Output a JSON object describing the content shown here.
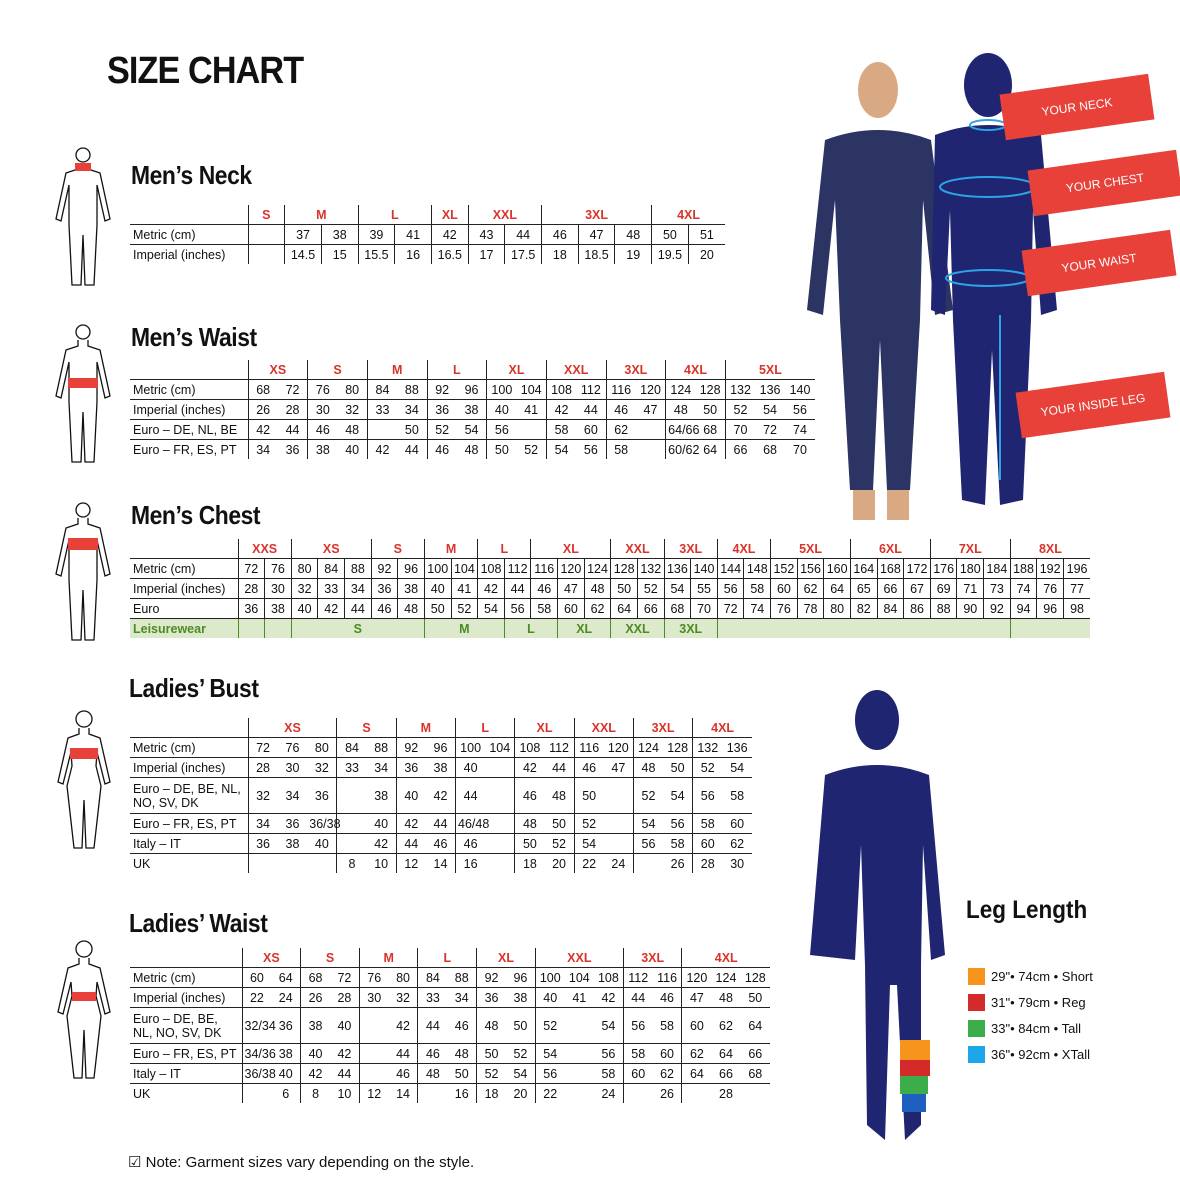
{
  "title": "SIZE CHART",
  "colors": {
    "size_label": "#d9342b",
    "navy": "#1f2570",
    "callout": "#e8413a",
    "leisure_text": "#4e8a23",
    "leisure_bg": "#dceacb"
  },
  "callouts": [
    "YOUR NECK",
    "YOUR CHEST",
    "YOUR WAIST",
    "YOUR INSIDE LEG"
  ],
  "tables": [
    {
      "id": "mens-neck",
      "heading": "Men’s Neck",
      "sizes": [
        {
          "label": "S",
          "span": 1
        },
        {
          "label": "M",
          "span": 2
        },
        {
          "label": "L",
          "span": 2
        },
        {
          "label": "XL",
          "span": 1
        },
        {
          "label": "XXL",
          "span": 2
        },
        {
          "label": "3XL",
          "span": 3
        },
        {
          "label": "4XL",
          "span": 2
        }
      ],
      "rows": [
        {
          "label": "Metric (cm)",
          "cells": [
            "",
            "37",
            "38",
            "39",
            "41",
            "42",
            "43",
            "44",
            "46",
            "47",
            "48",
            "50",
            "51"
          ]
        },
        {
          "label": "Imperial (inches)",
          "cells": [
            "",
            "14.5",
            "15",
            "15.5",
            "16",
            "16.5",
            "17",
            "17.5",
            "18",
            "18.5",
            "19",
            "19.5",
            "20"
          ]
        }
      ]
    },
    {
      "id": "mens-waist",
      "heading": "Men’s Waist",
      "sizes": [
        {
          "label": "XS",
          "span": 2
        },
        {
          "label": "S",
          "span": 2
        },
        {
          "label": "M",
          "span": 2
        },
        {
          "label": "L",
          "span": 2
        },
        {
          "label": "XL",
          "span": 2
        },
        {
          "label": "XXL",
          "span": 2
        },
        {
          "label": "3XL",
          "span": 2
        },
        {
          "label": "4XL",
          "span": 2
        },
        {
          "label": "5XL",
          "span": 3
        }
      ],
      "rows": [
        {
          "label": "Metric (cm)",
          "cells": [
            "68",
            "72",
            "76",
            "80",
            "84",
            "88",
            "92",
            "96",
            "100",
            "104",
            "108",
            "112",
            "116",
            "120",
            "124",
            "128",
            "132",
            "136",
            "140"
          ]
        },
        {
          "label": "Imperial (inches)",
          "cells": [
            "26",
            "28",
            "30",
            "32",
            "33",
            "34",
            "36",
            "38",
            "40",
            "41",
            "42",
            "44",
            "46",
            "47",
            "48",
            "50",
            "52",
            "54",
            "56"
          ]
        },
        {
          "label": "Euro – DE, NL, BE",
          "cells": [
            "42",
            "44",
            "46",
            "48",
            "",
            "50",
            "52",
            "54",
            "56",
            "",
            "58",
            "60",
            "62",
            "",
            "64/66",
            "68",
            "70",
            "72",
            "74"
          ]
        },
        {
          "label": "Euro – FR, ES, PT",
          "cells": [
            "34",
            "36",
            "38",
            "40",
            "42",
            "44",
            "46",
            "48",
            "50",
            "52",
            "54",
            "56",
            "58",
            "",
            "60/62",
            "64",
            "66",
            "68",
            "70"
          ]
        }
      ]
    },
    {
      "id": "mens-chest",
      "heading": "Men’s Chest",
      "sizes": [
        {
          "label": "XXS",
          "span": 2
        },
        {
          "label": "XS",
          "span": 3
        },
        {
          "label": "S",
          "span": 2
        },
        {
          "label": "M",
          "span": 2
        },
        {
          "label": "L",
          "span": 2
        },
        {
          "label": "XL",
          "span": 3
        },
        {
          "label": "XXL",
          "span": 2
        },
        {
          "label": "3XL",
          "span": 2
        },
        {
          "label": "4XL",
          "span": 2
        },
        {
          "label": "5XL",
          "span": 3
        },
        {
          "label": "6XL",
          "span": 3
        },
        {
          "label": "7XL",
          "span": 3
        },
        {
          "label": "8XL",
          "span": 3
        }
      ],
      "rows": [
        {
          "label": "Metric (cm)",
          "cells": [
            "72",
            "76",
            "80",
            "84",
            "88",
            "92",
            "96",
            "100",
            "104",
            "108",
            "112",
            "116",
            "120",
            "124",
            "128",
            "132",
            "136",
            "140",
            "144",
            "148",
            "152",
            "156",
            "160",
            "164",
            "168",
            "172",
            "176",
            "180",
            "184",
            "188",
            "192",
            "196"
          ]
        },
        {
          "label": "Imperial (inches)",
          "cells": [
            "28",
            "30",
            "32",
            "33",
            "34",
            "36",
            "38",
            "40",
            "41",
            "42",
            "44",
            "46",
            "47",
            "48",
            "50",
            "52",
            "54",
            "55",
            "56",
            "58",
            "60",
            "62",
            "64",
            "65",
            "66",
            "67",
            "69",
            "71",
            "73",
            "74",
            "76",
            "77"
          ]
        },
        {
          "label": "Euro",
          "cells": [
            "36",
            "38",
            "40",
            "42",
            "44",
            "46",
            "48",
            "50",
            "52",
            "54",
            "56",
            "58",
            "60",
            "62",
            "64",
            "66",
            "68",
            "70",
            "72",
            "74",
            "76",
            "78",
            "80",
            "82",
            "84",
            "86",
            "88",
            "90",
            "92",
            "94",
            "96",
            "98"
          ]
        }
      ],
      "leisurewear": {
        "label": "Leisurewear",
        "cells": [
          {
            "text": "",
            "span": 1
          },
          {
            "text": "",
            "span": 1
          },
          {
            "text": "S",
            "span": 5
          },
          {
            "text": "M",
            "span": 3
          },
          {
            "text": "L",
            "span": 2
          },
          {
            "text": "XL",
            "span": 2
          },
          {
            "text": "XXL",
            "span": 2
          },
          {
            "text": "3XL",
            "span": 2
          },
          {
            "text": "",
            "span": 11
          },
          {
            "text": "",
            "span": 3
          }
        ]
      }
    },
    {
      "id": "ladies-bust",
      "heading": "Ladies’ Bust",
      "sizes": [
        {
          "label": "XS",
          "span": 3
        },
        {
          "label": "S",
          "span": 2
        },
        {
          "label": "M",
          "span": 2
        },
        {
          "label": "L",
          "span": 2
        },
        {
          "label": "XL",
          "span": 2
        },
        {
          "label": "XXL",
          "span": 2
        },
        {
          "label": "3XL",
          "span": 2
        },
        {
          "label": "4XL",
          "span": 2
        }
      ],
      "rows": [
        {
          "label": "Metric (cm)",
          "cells": [
            "72",
            "76",
            "80",
            "84",
            "88",
            "92",
            "96",
            "100",
            "104",
            "108",
            "112",
            "116",
            "120",
            "124",
            "128",
            "132",
            "136"
          ]
        },
        {
          "label": "Imperial (inches)",
          "cells": [
            "28",
            "30",
            "32",
            "33",
            "34",
            "36",
            "38",
            "40",
            "",
            "42",
            "44",
            "46",
            "47",
            "48",
            "50",
            "52",
            "54"
          ]
        },
        {
          "label": "Euro –  DE, BE, NL, NO, SV, DK",
          "cells": [
            "32",
            "34",
            "36",
            "",
            "38",
            "40",
            "42",
            "44",
            "",
            "46",
            "48",
            "50",
            "",
            "52",
            "54",
            "56",
            "58"
          ]
        },
        {
          "label": "Euro – FR, ES, PT",
          "cells": [
            "34",
            "36",
            "36/38",
            "",
            "40",
            "42",
            "44",
            "46/48",
            "",
            "48",
            "50",
            "52",
            "",
            "54",
            "56",
            "58",
            "60"
          ]
        },
        {
          "label": "Italy – IT",
          "cells": [
            "36",
            "38",
            "40",
            "",
            "42",
            "44",
            "46",
            "46",
            "",
            "50",
            "52",
            "54",
            "",
            "56",
            "58",
            "60",
            "62"
          ]
        },
        {
          "label": "UK",
          "cells": [
            "",
            "",
            "",
            "8",
            "10",
            "12",
            "14",
            "16",
            "",
            "18",
            "20",
            "22",
            "24",
            "",
            "26",
            "28",
            "30"
          ]
        }
      ]
    },
    {
      "id": "ladies-waist",
      "heading": "Ladies’ Waist",
      "sizes": [
        {
          "label": "XS",
          "span": 2
        },
        {
          "label": "S",
          "span": 2
        },
        {
          "label": "M",
          "span": 2
        },
        {
          "label": "L",
          "span": 2
        },
        {
          "label": "XL",
          "span": 2
        },
        {
          "label": "XXL",
          "span": 3
        },
        {
          "label": "3XL",
          "span": 2
        },
        {
          "label": "4XL",
          "span": 3
        }
      ],
      "rows": [
        {
          "label": "Metric (cm)",
          "cells": [
            "60",
            "64",
            "68",
            "72",
            "76",
            "80",
            "84",
            "88",
            "92",
            "96",
            "100",
            "104",
            "108",
            "112",
            "116",
            "120",
            "124",
            "128"
          ]
        },
        {
          "label": "Imperial (inches)",
          "cells": [
            "22",
            "24",
            "26",
            "28",
            "30",
            "32",
            "33",
            "34",
            "36",
            "38",
            "40",
            "41",
            "42",
            "44",
            "46",
            "47",
            "48",
            "50"
          ]
        },
        {
          "label": "Euro – DE, BE, NL, NO, SV, DK",
          "cells": [
            "32/34",
            "36",
            "38",
            "40",
            "",
            "42",
            "44",
            "46",
            "48",
            "50",
            "52",
            "",
            "54",
            "56",
            "58",
            "60",
            "62",
            "64"
          ]
        },
        {
          "label": "Euro – FR, ES, PT",
          "cells": [
            "34/36",
            "38",
            "40",
            "42",
            "",
            "44",
            "46",
            "48",
            "50",
            "52",
            "54",
            "",
            "56",
            "58",
            "60",
            "62",
            "64",
            "66"
          ]
        },
        {
          "label": "Italy – IT",
          "cells": [
            "36/38",
            "40",
            "42",
            "44",
            "",
            "46",
            "48",
            "50",
            "52",
            "54",
            "56",
            "",
            "58",
            "60",
            "62",
            "64",
            "66",
            "68"
          ]
        },
        {
          "label": "UK",
          "cells": [
            "",
            "6",
            "8",
            "10",
            "12",
            "14",
            "",
            "16",
            "18",
            "20",
            "22",
            "",
            "24",
            "",
            "26",
            "",
            "28",
            ""
          ]
        }
      ]
    }
  ],
  "leg_length": {
    "heading": "Leg Length",
    "items": [
      {
        "text": "29\"• 74cm • Short",
        "color": "#f7941d"
      },
      {
        "text": "31\"• 79cm • Reg",
        "color": "#d42a2a"
      },
      {
        "text": "33\"• 84cm • Tall",
        "color": "#3cae49"
      },
      {
        "text": "36\"• 92cm • XTall",
        "color": "#1ea7e8"
      }
    ]
  },
  "note": "Note: Garment sizes vary depending on the style."
}
